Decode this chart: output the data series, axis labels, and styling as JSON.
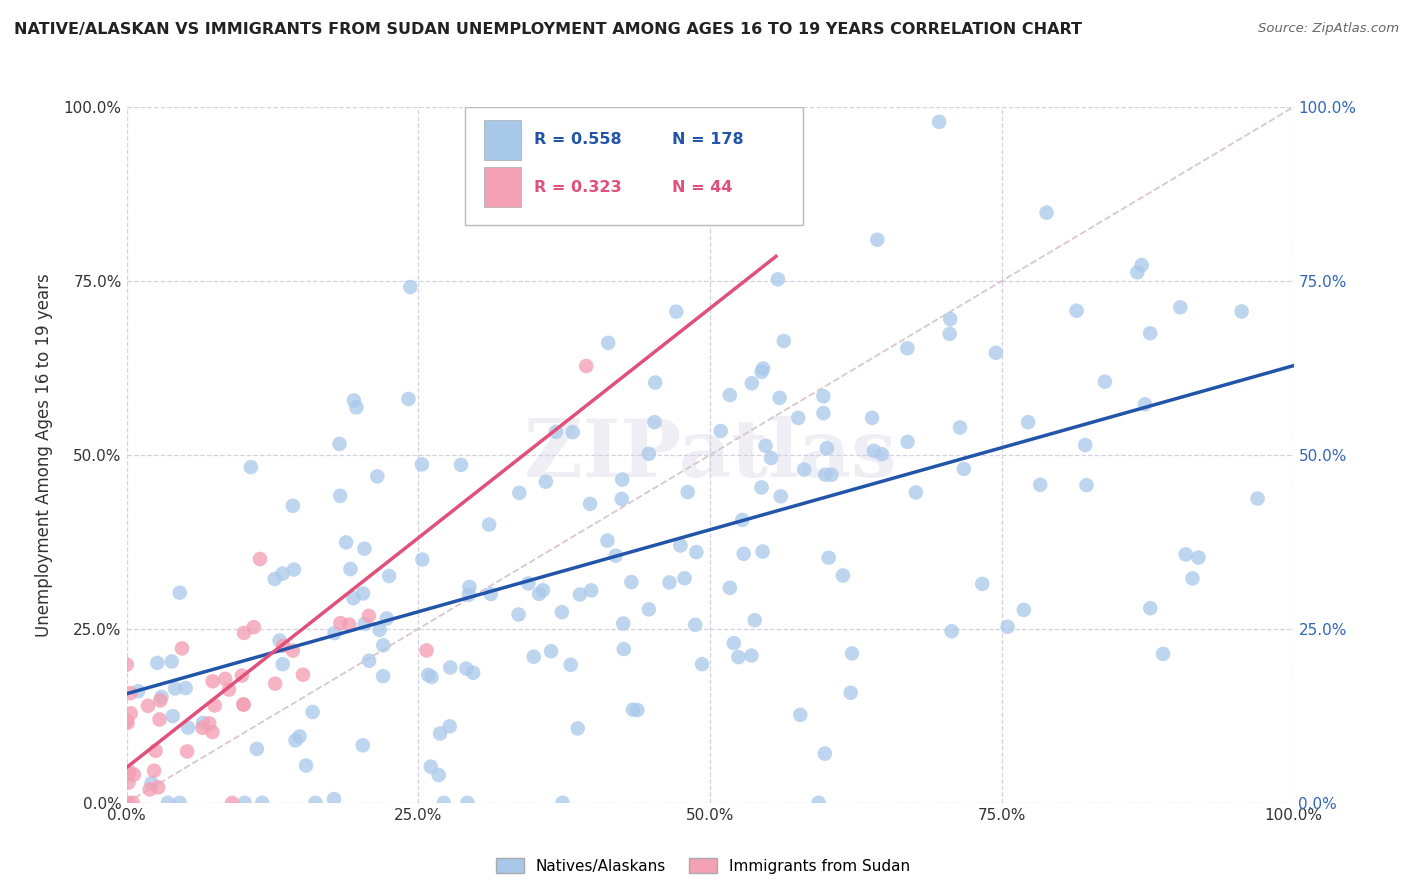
{
  "title": "NATIVE/ALASKAN VS IMMIGRANTS FROM SUDAN UNEMPLOYMENT AMONG AGES 16 TO 19 YEARS CORRELATION CHART",
  "source": "Source: ZipAtlas.com",
  "ylabel": "Unemployment Among Ages 16 to 19 years",
  "xlim": [
    0,
    1.0
  ],
  "ylim": [
    0,
    1.0
  ],
  "tick_vals": [
    0,
    0.25,
    0.5,
    0.75,
    1.0
  ],
  "tick_labels": [
    "0.0%",
    "25.0%",
    "50.0%",
    "75.0%",
    "100.0%"
  ],
  "blue_R": 0.558,
  "blue_N": 178,
  "pink_R": 0.323,
  "pink_N": 44,
  "blue_color": "#a8c8ea",
  "pink_color": "#f4a0b5",
  "blue_line_color": "#2255aa",
  "pink_line_color": "#e0507a",
  "diagonal_color": "#d8c0c8",
  "right_tick_color": "#3366bb",
  "watermark": "ZIPatlas",
  "legend_label_blue": "Natives/Alaskans",
  "legend_label_pink": "Immigrants from Sudan",
  "blue_seed": 42,
  "pink_seed": 99,
  "bg_color": "#ffffff"
}
